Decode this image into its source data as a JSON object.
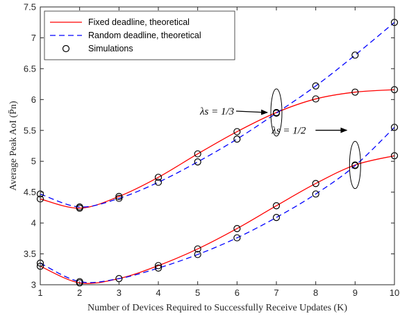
{
  "chart_data": {
    "type": "line",
    "title": "",
    "xlabel": "Number of Devices Required to Successfully Receive Updates (K)",
    "ylabel": "Average Peak AoI (P̄n)",
    "xlim": [
      1,
      10
    ],
    "ylim": [
      3,
      7.5
    ],
    "x_ticks": [
      "1",
      "2",
      "3",
      "4",
      "5",
      "6",
      "7",
      "8",
      "9",
      "10"
    ],
    "y_ticks": [
      "3",
      "3.5",
      "4",
      "4.5",
      "5",
      "5.5",
      "6",
      "6.5",
      "7",
      "7.5"
    ],
    "x": [
      1,
      2,
      3,
      4,
      5,
      6,
      7,
      8,
      9,
      10
    ],
    "grid": false,
    "legend_position": "top-left",
    "legend": [
      {
        "label": "Fixed deadline, theoretical",
        "style": "solid",
        "color": "#ff0000"
      },
      {
        "label": "Random deadline, theoretical",
        "style": "dashed",
        "color": "#0000ff"
      },
      {
        "label": "Simulations",
        "style": "marker-circle",
        "color": "#000000"
      }
    ],
    "series": [
      {
        "group": "λs = 1/3",
        "kind": "fixed",
        "color": "#ff0000",
        "values": [
          4.39,
          4.24,
          4.43,
          4.74,
          5.12,
          5.48,
          5.79,
          6.01,
          6.12,
          6.16
        ]
      },
      {
        "group": "λs = 1/3",
        "kind": "random",
        "color": "#0000ff",
        "values": [
          4.47,
          4.26,
          4.4,
          4.66,
          4.99,
          5.36,
          5.78,
          6.22,
          6.72,
          7.25
        ]
      },
      {
        "group": "λs = 1/3",
        "kind": "simulation",
        "color": "#000000",
        "points": [
          [
            1,
            4.39
          ],
          [
            1,
            4.47
          ],
          [
            2,
            4.24
          ],
          [
            2,
            4.26
          ],
          [
            3,
            4.43
          ],
          [
            3,
            4.4
          ],
          [
            4,
            4.74
          ],
          [
            4,
            4.66
          ],
          [
            5,
            5.12
          ],
          [
            5,
            4.99
          ],
          [
            6,
            5.48
          ],
          [
            6,
            5.36
          ],
          [
            7,
            5.79
          ],
          [
            7,
            5.78
          ],
          [
            8,
            6.01
          ],
          [
            8,
            6.22
          ],
          [
            9,
            6.12
          ],
          [
            9,
            6.72
          ],
          [
            10,
            6.16
          ],
          [
            10,
            7.25
          ]
        ]
      },
      {
        "group": "λs = 1/2",
        "kind": "fixed",
        "color": "#ff0000",
        "values": [
          3.3,
          3.03,
          3.1,
          3.31,
          3.58,
          3.91,
          4.28,
          4.64,
          4.94,
          5.09
        ]
      },
      {
        "group": "λs = 1/2",
        "kind": "random",
        "color": "#0000ff",
        "values": [
          3.35,
          3.05,
          3.1,
          3.27,
          3.49,
          3.76,
          4.09,
          4.47,
          4.93,
          5.55
        ]
      },
      {
        "group": "λs = 1/2",
        "kind": "simulation",
        "color": "#000000",
        "points": [
          [
            1,
            3.3
          ],
          [
            1,
            3.35
          ],
          [
            2,
            3.03
          ],
          [
            2,
            3.05
          ],
          [
            3,
            3.1
          ],
          [
            4,
            3.31
          ],
          [
            4,
            3.27
          ],
          [
            5,
            3.58
          ],
          [
            5,
            3.49
          ],
          [
            6,
            3.91
          ],
          [
            6,
            3.76
          ],
          [
            7,
            4.28
          ],
          [
            7,
            4.09
          ],
          [
            8,
            4.64
          ],
          [
            8,
            4.47
          ],
          [
            9,
            4.94
          ],
          [
            9,
            4.93
          ],
          [
            10,
            5.09
          ],
          [
            10,
            5.55
          ]
        ]
      }
    ],
    "annotations": [
      {
        "label": "λs = 1/3",
        "target_x": 7,
        "target_y": 5.79
      },
      {
        "label": "λs = 1/2",
        "target_x": 9,
        "target_y": 4.94
      }
    ]
  }
}
